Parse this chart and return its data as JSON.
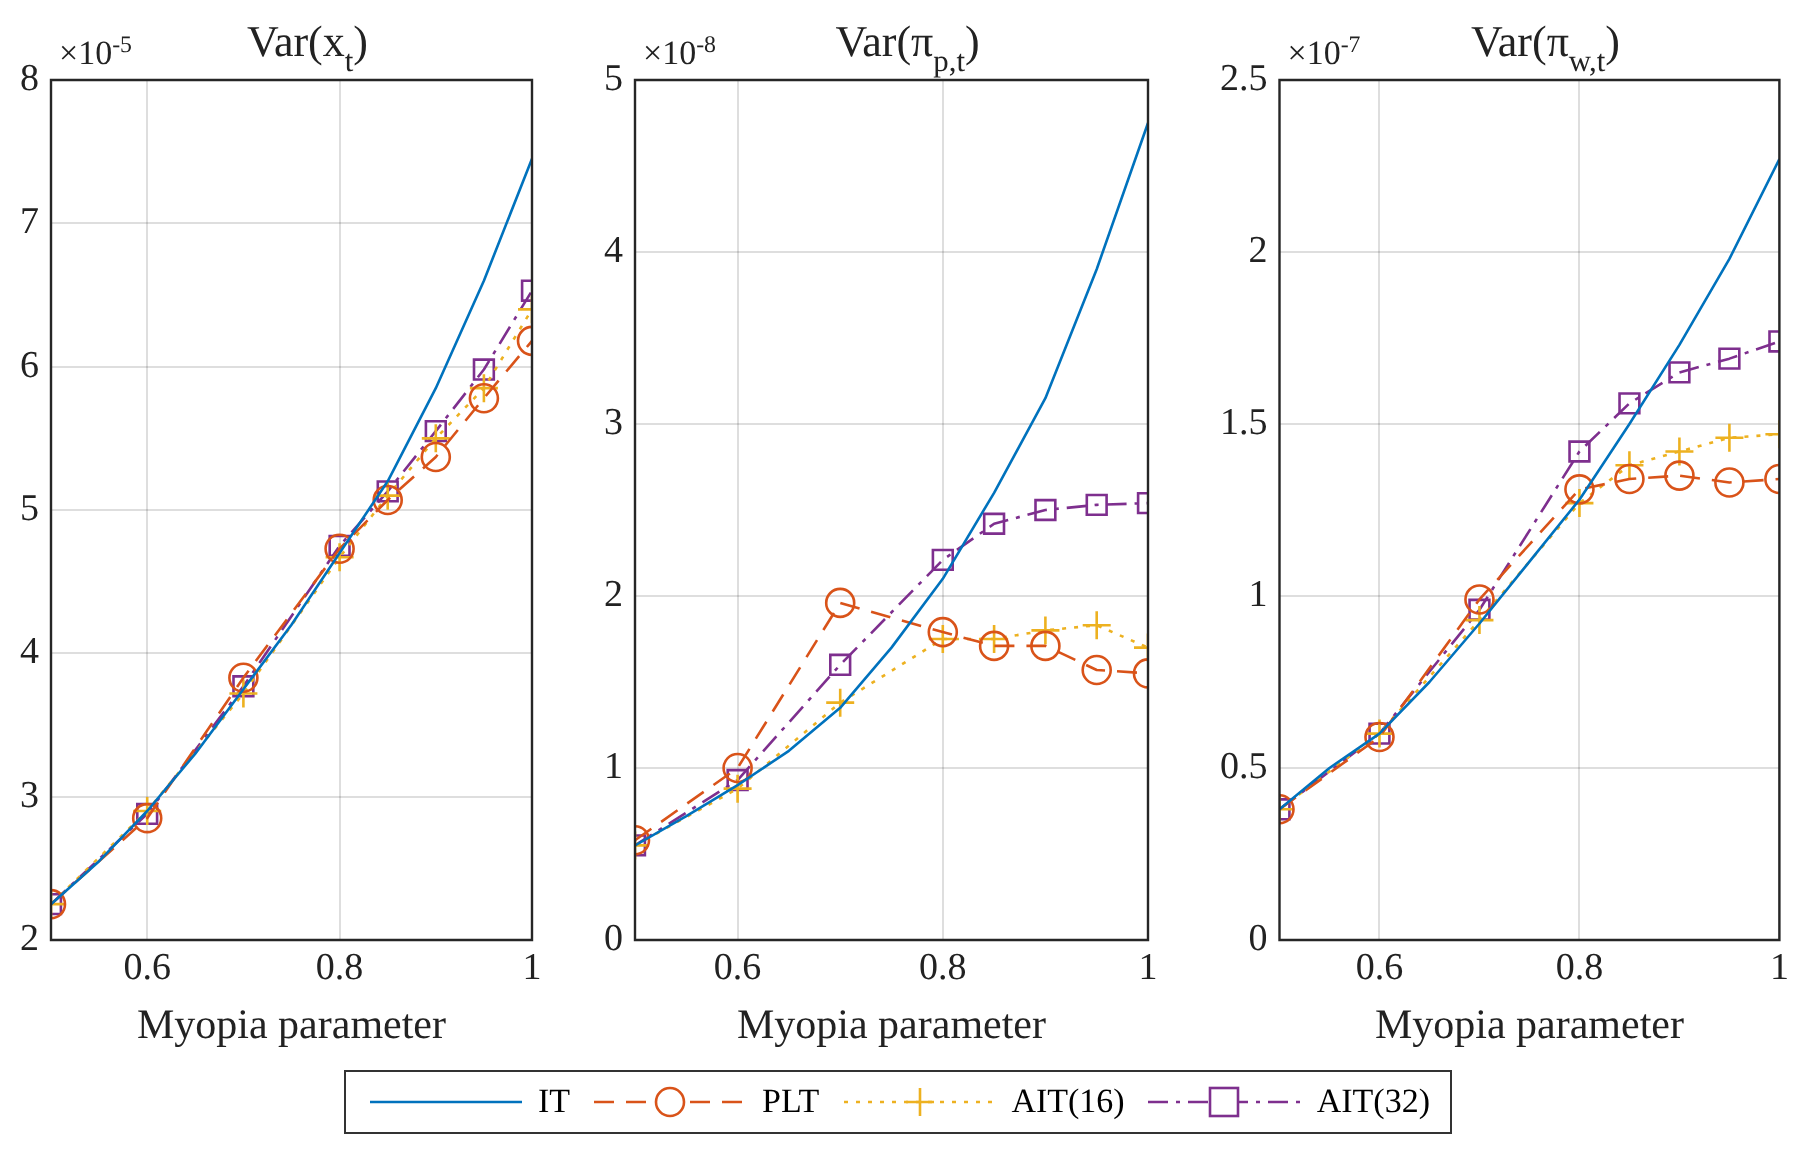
{
  "chart_data": [
    {
      "type": "line",
      "title": "Var(x$_{t}$)",
      "xlabel": "Myopia parameter",
      "annotations": [
        "×10$^{-5}$"
      ],
      "x": [
        0.5,
        0.6,
        0.7,
        0.8,
        0.85,
        0.9,
        0.95,
        1.0
      ],
      "xlim": [
        0.5,
        1
      ],
      "xticks": [
        0.6,
        0.8,
        1
      ],
      "ylim": [
        2,
        8
      ],
      "yticks": [
        2,
        3,
        4,
        5,
        6,
        7,
        8
      ],
      "grid": true,
      "legend": "bottom",
      "series": [
        {
          "name": "IT",
          "color": "#0072bd",
          "marker": "none",
          "line_style": "solid",
          "x": [
            0.5,
            0.55,
            0.6,
            0.65,
            0.7,
            0.75,
            0.8,
            0.85,
            0.9,
            0.95,
            1.0
          ],
          "values": [
            2.25,
            2.55,
            2.9,
            3.3,
            3.75,
            4.2,
            4.7,
            5.2,
            5.85,
            6.6,
            7.45
          ]
        },
        {
          "name": "PLT",
          "color": "#d95319",
          "marker": "circle",
          "line_style": "dashed",
          "values": [
            2.25,
            2.85,
            3.83,
            4.73,
            5.07,
            5.37,
            5.78,
            6.18
          ]
        },
        {
          "name": "AIT(16)",
          "color": "#edb120",
          "marker": "cross",
          "line_style": "dotted",
          "values": [
            2.25,
            2.9,
            3.72,
            4.67,
            5.1,
            5.5,
            5.85,
            6.4
          ]
        },
        {
          "name": "AIT(32)",
          "color": "#7e2f8e",
          "marker": "square",
          "line_style": "dashdot",
          "values": [
            2.25,
            2.88,
            3.77,
            4.75,
            5.13,
            5.55,
            5.98,
            6.53
          ]
        }
      ]
    },
    {
      "type": "line",
      "title": "Var(π$_{p,t}$)",
      "xlabel": "Myopia parameter",
      "annotations": [
        "×10$^{-8}$"
      ],
      "x": [
        0.5,
        0.6,
        0.7,
        0.8,
        0.85,
        0.9,
        0.95,
        1.0
      ],
      "xlim": [
        0.5,
        1
      ],
      "xticks": [
        0.6,
        0.8,
        1
      ],
      "ylim": [
        0,
        5
      ],
      "yticks": [
        0,
        1,
        2,
        3,
        4,
        5
      ],
      "grid": true,
      "legend": "bottom",
      "series": [
        {
          "name": "IT",
          "color": "#0072bd",
          "marker": "none",
          "line_style": "solid",
          "x": [
            0.5,
            0.55,
            0.6,
            0.65,
            0.7,
            0.75,
            0.8,
            0.85,
            0.9,
            0.95,
            1.0
          ],
          "values": [
            0.55,
            0.72,
            0.9,
            1.1,
            1.35,
            1.7,
            2.1,
            2.6,
            3.15,
            3.9,
            4.75
          ]
        },
        {
          "name": "PLT",
          "color": "#d95319",
          "marker": "circle",
          "line_style": "dashed",
          "values": [
            0.58,
            1.0,
            1.96,
            1.79,
            1.71,
            1.71,
            1.57,
            1.55
          ]
        },
        {
          "name": "AIT(16)",
          "color": "#edb120",
          "marker": "cross",
          "line_style": "dotted",
          "values": [
            0.55,
            0.88,
            1.38,
            1.75,
            1.75,
            1.8,
            1.83,
            1.7
          ]
        },
        {
          "name": "AIT(32)",
          "color": "#7e2f8e",
          "marker": "square",
          "line_style": "dashdot",
          "values": [
            0.55,
            0.93,
            1.6,
            2.21,
            2.42,
            2.5,
            2.53,
            2.54
          ]
        }
      ]
    },
    {
      "type": "line",
      "title": "Var(π$_{w,t}$)",
      "xlabel": "Myopia parameter",
      "annotations": [
        "×10$^{-7}$"
      ],
      "x": [
        0.5,
        0.6,
        0.7,
        0.8,
        0.85,
        0.9,
        0.95,
        1.0
      ],
      "xlim": [
        0.5,
        1
      ],
      "xticks": [
        0.6,
        0.8,
        1
      ],
      "ylim": [
        0,
        2.5
      ],
      "yticks": [
        0,
        0.5,
        1,
        1.5,
        2,
        2.5
      ],
      "grid": true,
      "legend": "bottom",
      "series": [
        {
          "name": "IT",
          "color": "#0072bd",
          "marker": "none",
          "line_style": "solid",
          "x": [
            0.5,
            0.55,
            0.6,
            0.65,
            0.7,
            0.75,
            0.8,
            0.85,
            0.9,
            0.95,
            1.0
          ],
          "values": [
            0.38,
            0.5,
            0.6,
            0.75,
            0.92,
            1.1,
            1.28,
            1.5,
            1.73,
            1.98,
            2.27
          ]
        },
        {
          "name": "PLT",
          "color": "#d95319",
          "marker": "circle",
          "line_style": "dashed",
          "values": [
            0.38,
            0.59,
            0.99,
            1.31,
            1.34,
            1.35,
            1.33,
            1.34
          ]
        },
        {
          "name": "AIT(16)",
          "color": "#edb120",
          "marker": "cross",
          "line_style": "dotted",
          "values": [
            0.38,
            0.6,
            0.93,
            1.27,
            1.38,
            1.42,
            1.46,
            1.47
          ]
        },
        {
          "name": "AIT(32)",
          "color": "#7e2f8e",
          "marker": "square",
          "line_style": "dashdot",
          "values": [
            0.38,
            0.6,
            0.96,
            1.42,
            1.56,
            1.65,
            1.69,
            1.74
          ]
        }
      ]
    }
  ]
}
